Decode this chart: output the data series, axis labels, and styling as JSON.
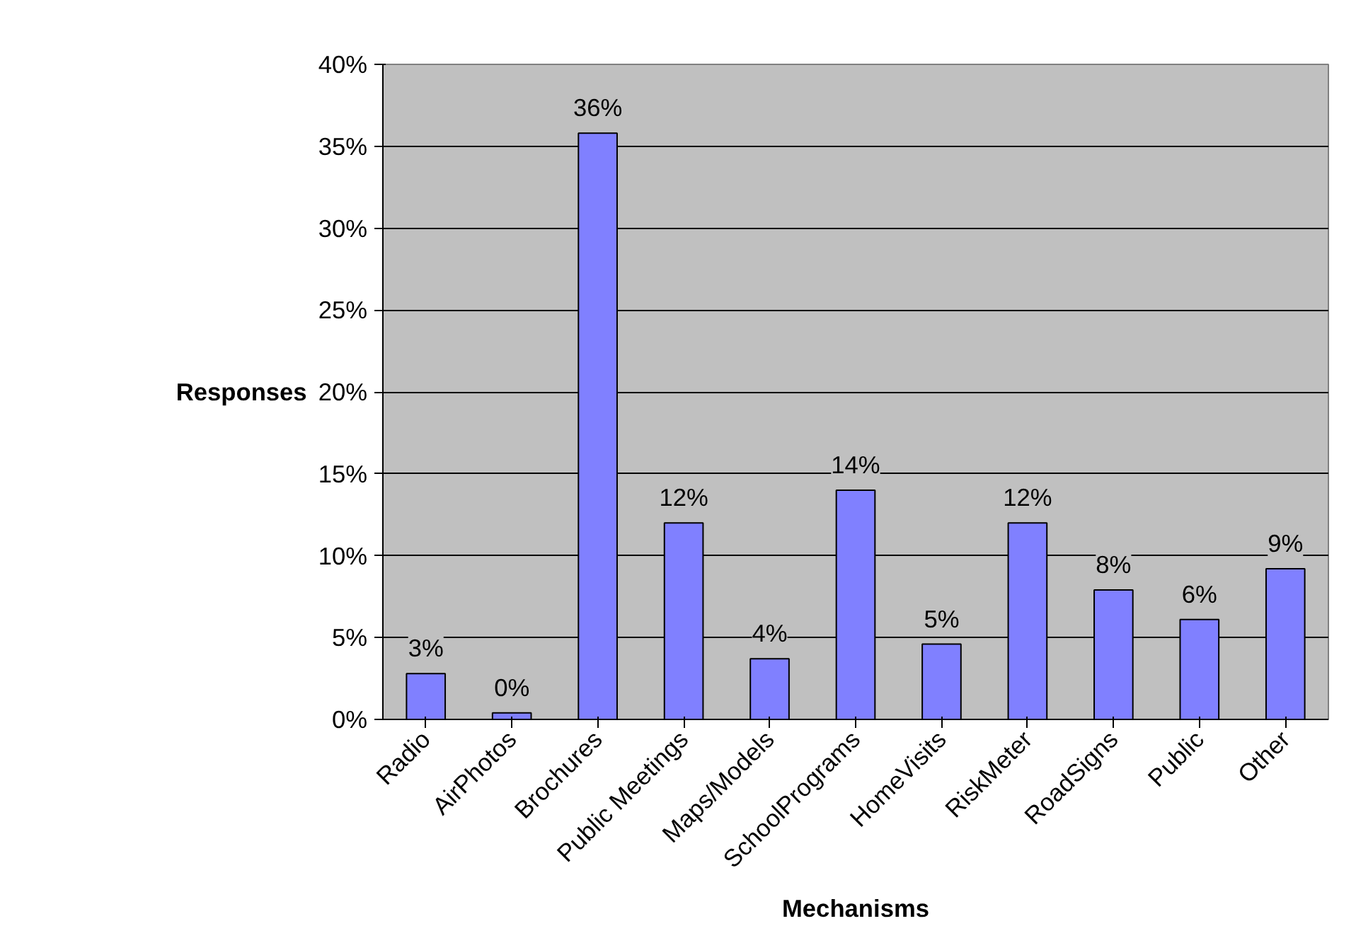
{
  "chart_data": {
    "type": "bar",
    "xlabel": "Mechanisms",
    "ylabel": "Responses",
    "categories": [
      "Radio",
      "AirPhotos",
      "Brochures",
      "Public Meetings",
      "Maps/Models",
      "SchoolPrograms",
      "HomeVisits",
      "RiskMeter",
      "RoadSigns",
      "Public",
      "Other"
    ],
    "values": [
      2.8,
      0.4,
      35.8,
      12.0,
      3.7,
      14.0,
      4.6,
      12.0,
      7.9,
      6.1,
      9.2
    ],
    "value_labels": [
      "3%",
      "0%",
      "36%",
      "12%",
      "4%",
      "14%",
      "5%",
      "12%",
      "8%",
      "6%",
      "9%"
    ],
    "color": "#8080ff",
    "ylim": [
      0,
      40
    ],
    "yticks": [
      {
        "value": 0,
        "label": "0%"
      },
      {
        "value": 5,
        "label": "5%"
      },
      {
        "value": 10,
        "label": "10%"
      },
      {
        "value": 15,
        "label": "15%"
      },
      {
        "value": 20,
        "label": "20%"
      },
      {
        "value": 25,
        "label": "25%"
      },
      {
        "value": 30,
        "label": "30%"
      },
      {
        "value": 35,
        "label": "35%"
      },
      {
        "value": 40,
        "label": "40%"
      }
    ],
    "grid": "y"
  }
}
